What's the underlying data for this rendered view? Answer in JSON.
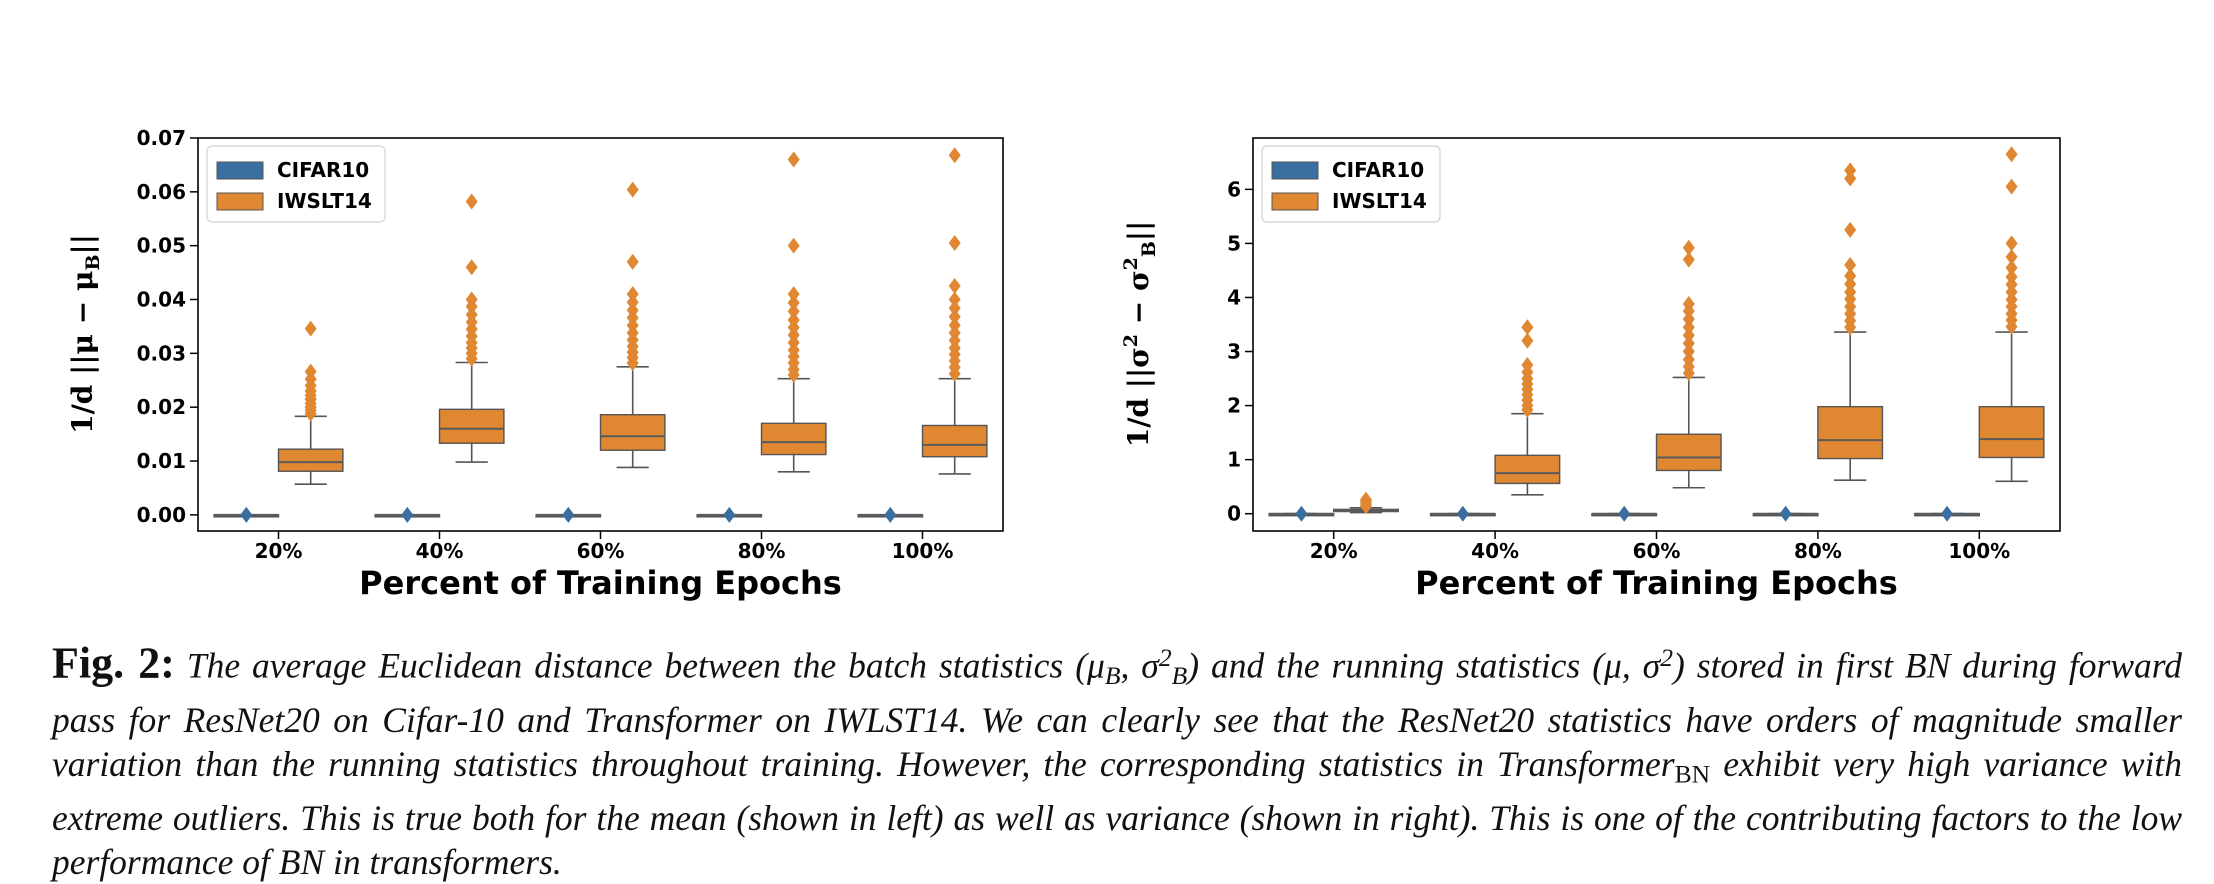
{
  "colors": {
    "cifar": "#3a6e9f",
    "iwslt": "#e08732",
    "median": "#5a5a5a",
    "whisker": "#555555"
  },
  "chart_data": [
    {
      "type": "box",
      "xlabel": "Percent of Training Epochs",
      "ylabel_tex": "1/d ||μ − μ_B||",
      "categories": [
        "20%",
        "40%",
        "60%",
        "80%",
        "100%"
      ],
      "ylim": [
        -0.003,
        0.07
      ],
      "yticks": [
        "0.00",
        "0.01",
        "0.02",
        "0.03",
        "0.04",
        "0.05",
        "0.06",
        "0.07"
      ],
      "ytick_values": [
        0,
        0.01,
        0.02,
        0.03,
        0.04,
        0.05,
        0.06,
        0.07
      ],
      "legend": {
        "placement": "top-left",
        "entries": [
          "CIFAR10",
          "IWSLT14"
        ]
      },
      "series": [
        {
          "name": "CIFAR10",
          "boxes": [
            {
              "whislo": 0,
              "q1": 0,
              "med": 0,
              "q3": 0,
              "whishi": 0,
              "fliers": [
                0
              ]
            },
            {
              "whislo": 0,
              "q1": 0,
              "med": 0,
              "q3": 0,
              "whishi": 0,
              "fliers": [
                0
              ]
            },
            {
              "whislo": 0,
              "q1": 0,
              "med": 0,
              "q3": 0,
              "whishi": 0,
              "fliers": [
                0
              ]
            },
            {
              "whislo": 0,
              "q1": 0,
              "med": 0,
              "q3": 0,
              "whishi": 0,
              "fliers": [
                0
              ]
            },
            {
              "whislo": 0,
              "q1": 0,
              "med": 0,
              "q3": 0,
              "whishi": 0,
              "fliers": [
                0
              ]
            }
          ]
        },
        {
          "name": "IWSLT14",
          "boxes": [
            {
              "whislo": 0.0057,
              "q1": 0.0081,
              "med": 0.0098,
              "q3": 0.0122,
              "whishi": 0.0183,
              "fliers": [
                0.0188,
                0.0194,
                0.02,
                0.0207,
                0.0215,
                0.0222,
                0.023,
                0.024,
                0.0252,
                0.0266,
                0.0346
              ]
            },
            {
              "whislo": 0.0098,
              "q1": 0.0133,
              "med": 0.016,
              "q3": 0.0196,
              "whishi": 0.0283,
              "fliers": [
                0.029,
                0.03,
                0.031,
                0.032,
                0.0332,
                0.0345,
                0.0358,
                0.0372,
                0.0387,
                0.04,
                0.046,
                0.0582
              ]
            },
            {
              "whislo": 0.0088,
              "q1": 0.012,
              "med": 0.0146,
              "q3": 0.0186,
              "whishi": 0.0275,
              "fliers": [
                0.0282,
                0.0292,
                0.0302,
                0.0313,
                0.0325,
                0.0338,
                0.0352,
                0.0366,
                0.038,
                0.0395,
                0.041,
                0.047,
                0.0604
              ]
            },
            {
              "whislo": 0.008,
              "q1": 0.0112,
              "med": 0.0135,
              "q3": 0.017,
              "whishi": 0.0253,
              "fliers": [
                0.026,
                0.027,
                0.0282,
                0.0294,
                0.0306,
                0.032,
                0.0334,
                0.0348,
                0.0362,
                0.0378,
                0.0394,
                0.041,
                0.05,
                0.066
              ]
            },
            {
              "whislo": 0.0076,
              "q1": 0.0108,
              "med": 0.013,
              "q3": 0.0166,
              "whishi": 0.0253,
              "fliers": [
                0.0262,
                0.0274,
                0.0286,
                0.0298,
                0.031,
                0.0324,
                0.0338,
                0.0352,
                0.0368,
                0.0384,
                0.04,
                0.0425,
                0.0505,
                0.0668
              ]
            }
          ]
        }
      ]
    },
    {
      "type": "box",
      "xlabel": "Percent of Training Epochs",
      "ylabel_tex": "1/d ||σ² − σ²_B||",
      "categories": [
        "20%",
        "40%",
        "60%",
        "80%",
        "100%"
      ],
      "ylim": [
        -0.32,
        6.95
      ],
      "yticks": [
        "0",
        "1",
        "2",
        "3",
        "4",
        "5",
        "6"
      ],
      "ytick_values": [
        0,
        1,
        2,
        3,
        4,
        5,
        6
      ],
      "legend": {
        "placement": "top-left",
        "entries": [
          "CIFAR10",
          "IWSLT14"
        ]
      },
      "series": [
        {
          "name": "CIFAR10",
          "boxes": [
            {
              "whislo": 0,
              "q1": 0,
              "med": 0,
              "q3": 0,
              "whishi": 0,
              "fliers": [
                0
              ]
            },
            {
              "whislo": 0,
              "q1": 0,
              "med": 0,
              "q3": 0,
              "whishi": 0,
              "fliers": [
                0
              ]
            },
            {
              "whislo": 0,
              "q1": 0,
              "med": 0,
              "q3": 0,
              "whishi": 0,
              "fliers": [
                0
              ]
            },
            {
              "whislo": 0,
              "q1": 0,
              "med": 0,
              "q3": 0,
              "whishi": 0,
              "fliers": [
                0
              ]
            },
            {
              "whislo": 0,
              "q1": 0,
              "med": 0,
              "q3": 0,
              "whishi": 0,
              "fliers": [
                0
              ]
            }
          ]
        },
        {
          "name": "IWSLT14",
          "boxes": [
            {
              "whislo": 0.02,
              "q1": 0.04,
              "med": 0.06,
              "q3": 0.08,
              "whishi": 0.11,
              "fliers": [
                0.14,
                0.18,
                0.22,
                0.26
              ]
            },
            {
              "whislo": 0.35,
              "q1": 0.56,
              "med": 0.75,
              "q3": 1.08,
              "whishi": 1.85,
              "fliers": [
                1.92,
                2.0,
                2.1,
                2.2,
                2.3,
                2.4,
                2.5,
                2.62,
                2.75,
                3.2,
                3.45
              ]
            },
            {
              "whislo": 0.48,
              "q1": 0.8,
              "med": 1.04,
              "q3": 1.47,
              "whishi": 2.52,
              "fliers": [
                2.6,
                2.72,
                2.85,
                3.0,
                3.15,
                3.3,
                3.45,
                3.6,
                3.75,
                3.88,
                4.7,
                4.92
              ]
            },
            {
              "whislo": 0.62,
              "q1": 1.02,
              "med": 1.36,
              "q3": 1.98,
              "whishi": 3.36,
              "fliers": [
                3.45,
                3.57,
                3.7,
                3.83,
                3.97,
                4.1,
                4.25,
                4.4,
                4.6,
                5.25,
                6.2,
                6.35
              ]
            },
            {
              "whislo": 0.6,
              "q1": 1.04,
              "med": 1.38,
              "q3": 1.98,
              "whishi": 3.36,
              "fliers": [
                3.46,
                3.58,
                3.7,
                3.83,
                3.96,
                4.1,
                4.24,
                4.38,
                4.55,
                4.75,
                5.0,
                6.05,
                6.65
              ]
            }
          ]
        }
      ]
    }
  ],
  "caption": {
    "label": "Fig. 2:",
    "seg1": " The average Euclidean distance between the batch statistics (",
    "mu_b": "μ",
    "sub_b1": "B",
    "comma_sigma": ", σ",
    "sup_2a": "2",
    "sub_b2": "B",
    "seg2": ") and the running statistics (μ, σ",
    "sup_2b": "2",
    "seg3": ") stored in first BN during forward pass for ResNet20 on Cifar-10 and Transformer on IWLST14. We can clearly see that the ResNet20 statistics have orders of magnitude smaller variation than the running statistics throughout training. However, the corresponding statistics in Transformer",
    "sub_bn": "BN",
    "seg4": " exhibit very high variance with extreme outliers. This is true both for the mean (shown in left) as well as variance (shown in right). This is one of the contributing factors to the low performance of BN in transformers."
  }
}
